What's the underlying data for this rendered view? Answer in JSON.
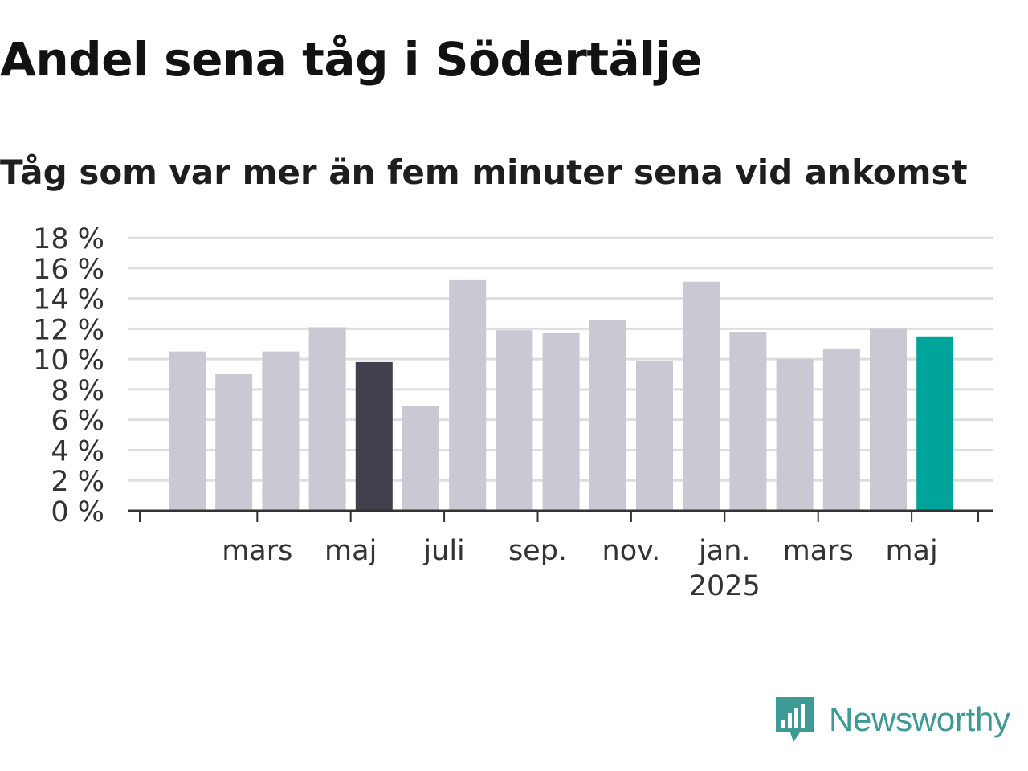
{
  "header": {
    "title": "Andel sena tåg i Södertälje",
    "subtitle": "Tåg som var mer än fem minuter sena vid ankomst"
  },
  "chart_data": {
    "type": "bar",
    "title": "Andel sena tåg i Södertälje",
    "subtitle": "Tåg som var mer än fem minuter sena vid ankomst",
    "xlabel": "",
    "ylabel": "",
    "ylim": [
      0,
      18
    ],
    "y_ticks": [
      0,
      2,
      4,
      6,
      8,
      10,
      12,
      14,
      16,
      18
    ],
    "y_tick_suffix": " %",
    "grid": true,
    "values": [
      10.5,
      9.0,
      10.5,
      12.1,
      9.8,
      6.9,
      15.2,
      11.9,
      11.7,
      12.6,
      9.9,
      15.1,
      11.8,
      10.0,
      10.7,
      12.0,
      11.5
    ],
    "colors": [
      "#c9c8d3",
      "#c9c8d3",
      "#c9c8d3",
      "#c9c8d3",
      "#42404c",
      "#c9c8d3",
      "#c9c8d3",
      "#c9c8d3",
      "#c9c8d3",
      "#c9c8d3",
      "#c9c8d3",
      "#c9c8d3",
      "#c9c8d3",
      "#c9c8d3",
      "#c9c8d3",
      "#c9c8d3",
      "#00a49a"
    ],
    "x_tick_labels": [
      {
        "label": "mars",
        "index": 1.5,
        "sublabel": ""
      },
      {
        "label": "maj",
        "index": 3.5,
        "sublabel": ""
      },
      {
        "label": "juli",
        "index": 5.5,
        "sublabel": ""
      },
      {
        "label": "sep.",
        "index": 7.5,
        "sublabel": ""
      },
      {
        "label": "nov.",
        "index": 9.5,
        "sublabel": ""
      },
      {
        "label": "jan.",
        "index": 11.5,
        "sublabel": "2025"
      },
      {
        "label": "mars",
        "index": 13.5,
        "sublabel": ""
      },
      {
        "label": "maj",
        "index": 15.5,
        "sublabel": ""
      }
    ]
  },
  "brand": {
    "name": "Newsworthy",
    "icon": "newsworthy-logo-icon",
    "color": "#3e9a95"
  }
}
